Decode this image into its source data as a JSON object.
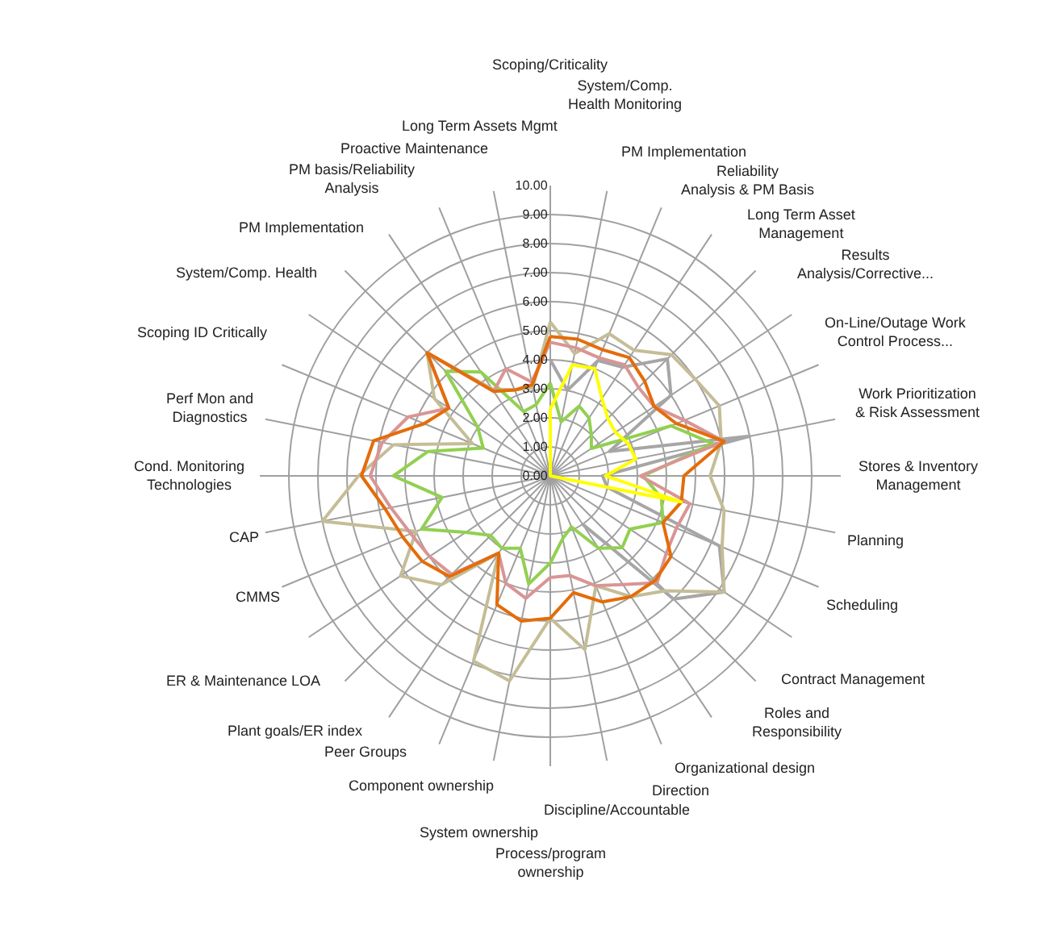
{
  "chart_data": {
    "type": "radar",
    "categories": [
      "Scoping/Criticality",
      "System/Comp. Health Monitoring",
      "PM Implementation",
      "Reliability Analysis & PM Basis",
      "Long Term Asset Management",
      "Results Analysis/Corrective...",
      "On-Line/Outage Work Control Process...",
      "Work Prioritization & Risk Assessment",
      "Stores & Inventory Management",
      "Planning",
      "Scheduling",
      "Contract Management",
      "Roles and Responsibility",
      "Organizational design",
      "Direction",
      "Discipline/Accountable",
      "Process/program ownership",
      "System ownership",
      "Component ownership",
      "Peer Groups",
      "Plant goals/ER index",
      "ER & Maintenance LOA",
      "CMMS",
      "CAP",
      "Cond. Monitoring Technologies",
      "Perf Mon and Diagnostics",
      "Scoping ID Critically",
      "System/Comp. Health",
      "PM Implementation",
      "PM basis/Reliability Analysis",
      "Proactive Maintenance",
      "Long Term Assets Mgmt"
    ],
    "series": [
      {
        "color": "#a6a6a6",
        "values": [
          4.0,
          3.0,
          4.3,
          4.5,
          5.7,
          5.0,
          2.2,
          7.0,
          1.8,
          2.0,
          6.3,
          7.2,
          6.0,
          2.0,
          null,
          null,
          null,
          null,
          null,
          null,
          null,
          null,
          null,
          null,
          null,
          null,
          null,
          null,
          null,
          null,
          null,
          null
        ]
      },
      {
        "color": "#c4bd97",
        "values": [
          5.3,
          4.3,
          5.3,
          5.2,
          5.9,
          6.0,
          6.3,
          6.0,
          5.5,
          6.1,
          6.4,
          7.2,
          5.6,
          5.0,
          4.1,
          6.1,
          4.9,
          7.2,
          6.9,
          3.2,
          5.3,
          6.2,
          5.0,
          8.0,
          6.6,
          5.5,
          2.9,
          4.8,
          6.0,
          3.6,
          3.2,
          3.1
        ]
      },
      {
        "color": "#92d050",
        "values": [
          3.2,
          1.9,
          2.6,
          2.4,
          2.0,
          1.7,
          4.5,
          5.7,
          3.2,
          3.9,
          4.2,
          3.3,
          3.5,
          3.0,
          1.9,
          2.2,
          3.0,
          3.8,
          2.7,
          3.0,
          2.9,
          3.5,
          4.8,
          3.8,
          5.4,
          4.3,
          2.5,
          3.0,
          5.1,
          4.3,
          2.4,
          2.5
        ]
      },
      {
        "color": "#d99594",
        "values": [
          4.6,
          4.5,
          4.4,
          4.6,
          4.3,
          4.3,
          5.0,
          6.1,
          3.1,
          4.9,
          4.7,
          4.8,
          5.2,
          4.5,
          4.1,
          3.5,
          3.5,
          4.3,
          4.0,
          3.2,
          4.8,
          5.0,
          5.2,
          5.6,
          6.2,
          5.9,
          5.3,
          4.2,
          6.0,
          3.5,
          4.0,
          3.3
        ]
      },
      {
        "color": "#e46c0a",
        "values": [
          4.8,
          4.8,
          4.7,
          4.9,
          4.6,
          4.3,
          4.7,
          6.1,
          4.6,
          4.6,
          4.2,
          5.0,
          5.1,
          5.0,
          4.7,
          4.1,
          4.9,
          5.1,
          4.8,
          3.2,
          4.9,
          5.3,
          5.5,
          5.8,
          6.5,
          6.2,
          4.7,
          4.2,
          6.0,
          3.5,
          3.2,
          3.2
        ]
      },
      {
        "color": "#ffff00",
        "values": [
          2.3,
          3.9,
          4.0,
          3.2,
          2.8,
          2.7,
          2.9,
          3.0,
          1.9,
          4.6,
          0,
          0,
          0,
          0,
          0,
          0,
          0,
          0,
          0,
          0,
          0,
          0,
          0,
          0,
          0,
          0,
          0,
          0,
          0,
          0,
          0,
          0
        ]
      }
    ],
    "ylim": [
      0,
      10
    ],
    "yticks": [
      {
        "value": 0,
        "label": "0.00"
      },
      {
        "value": 1,
        "label": "1.00"
      },
      {
        "value": 2,
        "label": "2.00"
      },
      {
        "value": 3,
        "label": "3.00"
      },
      {
        "value": 4,
        "label": "4.00"
      },
      {
        "value": 5,
        "label": "5.00"
      },
      {
        "value": 6,
        "label": "6.00"
      },
      {
        "value": 7,
        "label": "7.00"
      },
      {
        "value": 8,
        "label": "8.00"
      },
      {
        "value": 9,
        "label": "9.00"
      },
      {
        "value": 10,
        "label": "10.00"
      }
    ],
    "grid": true,
    "marker": "none",
    "line_style": "solid"
  }
}
